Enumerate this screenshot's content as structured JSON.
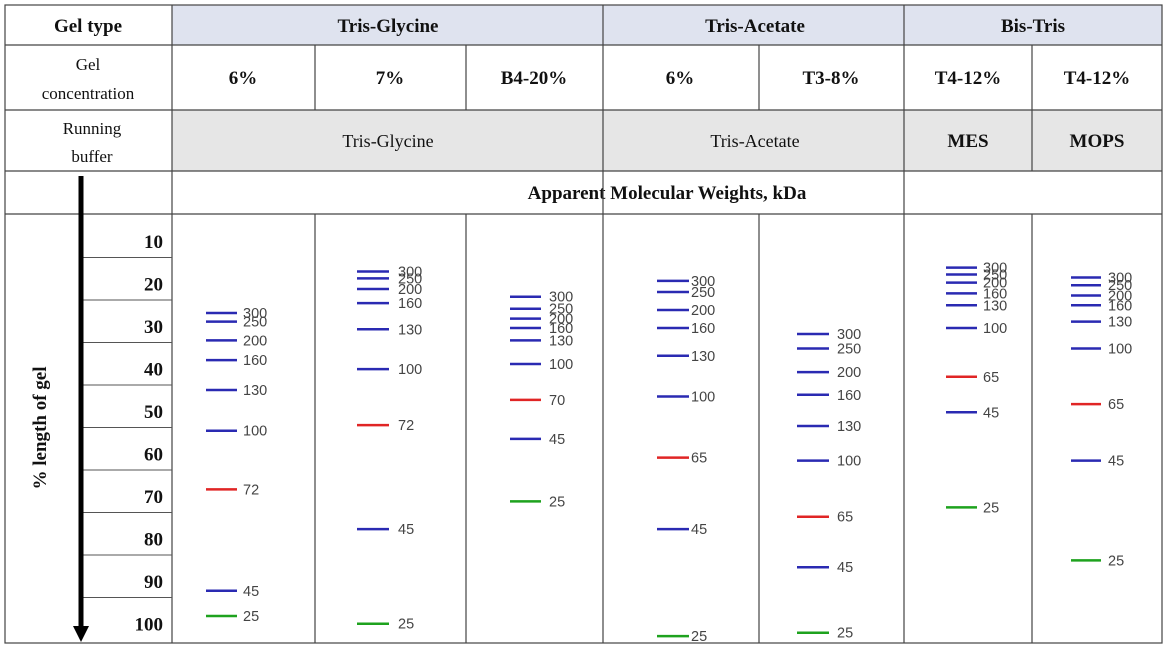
{
  "header": {
    "gel_type_label": "Gel type",
    "gel_types": [
      "Tris-Glycine",
      "Tris-Acetate",
      "Bis-Tris"
    ],
    "gel_concentration_label": [
      "Gel",
      "concentration"
    ],
    "concentrations": [
      "6%",
      "7%",
      "B4-20%",
      "6%",
      "T3-8%",
      "T4-12%",
      "T4-12%"
    ],
    "running_buffer_label": [
      "Running",
      "buffer"
    ],
    "buffers": [
      "Tris-Glycine",
      "Tris-Acetate",
      "MES",
      "MOPS"
    ],
    "mw_title": "Apparent Molecular Weights, kDa"
  },
  "axis": {
    "label": "% length of gel",
    "ticks": [
      "10",
      "20",
      "30",
      "40",
      "50",
      "60",
      "70",
      "80",
      "90",
      "100"
    ]
  },
  "colors": {
    "header_fill": "#dfe3ef",
    "buffer_fill": "#e6e6e6",
    "blue_band": "#2a2ab2",
    "red_band": "#e02525",
    "green_band": "#1ea21e",
    "grid_line": "#444444"
  },
  "chart_data": {
    "type": "gel-migration",
    "y_axis": {
      "label": "% length of gel",
      "range": [
        10,
        100
      ],
      "direction": "down"
    },
    "lanes": [
      {
        "gel": "Tris-Glycine",
        "concentration": "6%",
        "buffer": "Tris-Glycine",
        "bands": [
          {
            "label": "300",
            "pos": 22.9,
            "color": "blue"
          },
          {
            "label": "250",
            "pos": 24.9,
            "color": "blue"
          },
          {
            "label": "200",
            "pos": 29.3,
            "color": "blue"
          },
          {
            "label": "160",
            "pos": 33.9,
            "color": "blue"
          },
          {
            "label": "130",
            "pos": 40.9,
            "color": "blue"
          },
          {
            "label": "100",
            "pos": 50.4,
            "color": "blue"
          },
          {
            "label": "72",
            "pos": 64.1,
            "color": "red"
          },
          {
            "label": "45",
            "pos": 87.8,
            "color": "blue"
          },
          {
            "label": "25",
            "pos": 93.7,
            "color": "green"
          }
        ]
      },
      {
        "gel": "Tris-Glycine",
        "concentration": "7%",
        "buffer": "Tris-Glycine",
        "bands": [
          {
            "label": "300",
            "pos": 13.2,
            "color": "blue"
          },
          {
            "label": "250",
            "pos": 14.8,
            "color": "blue"
          },
          {
            "label": "200",
            "pos": 17.3,
            "color": "blue"
          },
          {
            "label": "160",
            "pos": 20.6,
            "color": "blue"
          },
          {
            "label": "130",
            "pos": 26.7,
            "color": "blue"
          },
          {
            "label": "100",
            "pos": 36.0,
            "color": "blue"
          },
          {
            "label": "72",
            "pos": 49.1,
            "color": "red"
          },
          {
            "label": "45",
            "pos": 73.4,
            "color": "blue"
          },
          {
            "label": "25",
            "pos": 95.5,
            "color": "green"
          }
        ]
      },
      {
        "gel": "Tris-Glycine",
        "concentration": "B4-20%",
        "buffer": "Tris-Glycine",
        "bands": [
          {
            "label": "300",
            "pos": 19.1,
            "color": "blue"
          },
          {
            "label": "250",
            "pos": 21.9,
            "color": "blue"
          },
          {
            "label": "200",
            "pos": 24.2,
            "color": "blue"
          },
          {
            "label": "160",
            "pos": 26.4,
            "color": "blue"
          },
          {
            "label": "130",
            "pos": 29.3,
            "color": "blue"
          },
          {
            "label": "100",
            "pos": 34.8,
            "color": "blue"
          },
          {
            "label": "70",
            "pos": 43.2,
            "color": "red"
          },
          {
            "label": "45",
            "pos": 52.3,
            "color": "blue"
          },
          {
            "label": "25",
            "pos": 66.9,
            "color": "green"
          }
        ]
      },
      {
        "gel": "Tris-Acetate",
        "concentration": "6%",
        "buffer": "Tris-Acetate",
        "bands": [
          {
            "label": "300",
            "pos": 15.4,
            "color": "blue"
          },
          {
            "label": "250",
            "pos": 18.0,
            "color": "blue"
          },
          {
            "label": "200",
            "pos": 22.2,
            "color": "blue"
          },
          {
            "label": "160",
            "pos": 26.4,
            "color": "blue"
          },
          {
            "label": "130",
            "pos": 32.9,
            "color": "blue"
          },
          {
            "label": "100",
            "pos": 42.4,
            "color": "blue"
          },
          {
            "label": "65",
            "pos": 56.7,
            "color": "red"
          },
          {
            "label": "45",
            "pos": 73.4,
            "color": "blue"
          },
          {
            "label": "25",
            "pos": 98.4,
            "color": "green"
          }
        ]
      },
      {
        "gel": "Tris-Acetate",
        "concentration": "T3-8%",
        "buffer": "Tris-Acetate",
        "bands": [
          {
            "label": "300",
            "pos": 27.8,
            "color": "blue"
          },
          {
            "label": "250",
            "pos": 31.2,
            "color": "blue"
          },
          {
            "label": "200",
            "pos": 36.7,
            "color": "blue"
          },
          {
            "label": "160",
            "pos": 42.0,
            "color": "blue"
          },
          {
            "label": "130",
            "pos": 49.3,
            "color": "blue"
          },
          {
            "label": "100",
            "pos": 57.4,
            "color": "blue"
          },
          {
            "label": "65",
            "pos": 70.5,
            "color": "red"
          },
          {
            "label": "45",
            "pos": 82.3,
            "color": "blue"
          },
          {
            "label": "25",
            "pos": 97.6,
            "color": "green"
          }
        ]
      },
      {
        "gel": "Bis-Tris",
        "concentration": "T4-12%",
        "buffer": "MES",
        "bands": [
          {
            "label": "300",
            "pos": 12.3,
            "color": "blue"
          },
          {
            "label": "250",
            "pos": 13.9,
            "color": "blue"
          },
          {
            "label": "200",
            "pos": 15.8,
            "color": "blue"
          },
          {
            "label": "160",
            "pos": 18.3,
            "color": "blue"
          },
          {
            "label": "130",
            "pos": 21.1,
            "color": "blue"
          },
          {
            "label": "100",
            "pos": 26.4,
            "color": "blue"
          },
          {
            "label": "65",
            "pos": 37.8,
            "color": "red"
          },
          {
            "label": "45",
            "pos": 46.1,
            "color": "blue"
          },
          {
            "label": "25",
            "pos": 68.3,
            "color": "green"
          }
        ]
      },
      {
        "gel": "Bis-Tris",
        "concentration": "T4-12%",
        "buffer": "MOPS",
        "bands": [
          {
            "label": "300",
            "pos": 14.6,
            "color": "blue"
          },
          {
            "label": "250",
            "pos": 16.4,
            "color": "blue"
          },
          {
            "label": "200",
            "pos": 18.8,
            "color": "blue"
          },
          {
            "label": "160",
            "pos": 21.1,
            "color": "blue"
          },
          {
            "label": "130",
            "pos": 24.9,
            "color": "blue"
          },
          {
            "label": "100",
            "pos": 31.2,
            "color": "blue"
          },
          {
            "label": "65",
            "pos": 44.2,
            "color": "red"
          },
          {
            "label": "45",
            "pos": 57.4,
            "color": "blue"
          },
          {
            "label": "25",
            "pos": 80.7,
            "color": "green"
          }
        ]
      }
    ]
  }
}
